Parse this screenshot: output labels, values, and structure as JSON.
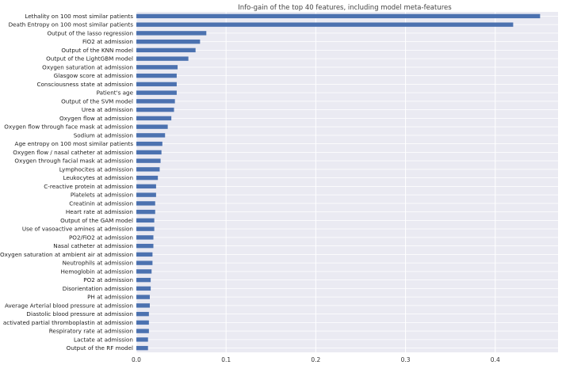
{
  "chart_data": {
    "type": "bar",
    "orientation": "horizontal",
    "title": "Info-gain of the top 40 features, including model meta-features",
    "xlabel": "",
    "ylabel": "",
    "xlim": [
      0,
      0.47
    ],
    "xticks": [
      "0.0",
      "0.1",
      "0.2",
      "0.3",
      "0.4"
    ],
    "grid": true,
    "bar_color": "#4c72b0",
    "background_color": "#eaeaf2",
    "grid_color": "#ffffff",
    "categories": [
      "Lethality on 100 most similar patients",
      "Death Entropy on 100 most similar patients",
      "Output of the lasso regression",
      "FiO2 at admission",
      "Output of the KNN model",
      "Output of the LightGBM model",
      "Oxygen saturation at admission",
      "Glasgow score at admission",
      "Consciousness state at admission",
      "Patient's age",
      "Output of the SVM model",
      "Urea at admission",
      "Oxygen flow at admission",
      "Oxygen flow through face mask at admission",
      "Sodium at admission",
      "Age entropy on 100 most similar patients",
      "Oxygen flow / nasal catheter at admission",
      "Oxygen through facial mask at admission",
      "Lymphocites at admission",
      "Leukocytes at admission",
      "C-reactive protein at admission",
      "Platelets at admission",
      "Creatinin at admission",
      "Heart rate at admission",
      "Output of the GAM model",
      "Use of vasoactive amines at admission",
      "PO2/FiO2 at admission",
      "Nasal catheter at admission",
      "Oxygen saturation at ambient air at admission",
      "Neutrophils at admission",
      "Hemoglobin at admission",
      "PO2 at admission",
      "Disorientation admission",
      "PH at admission",
      "Average Arterial blood pressure at admission",
      "Diastolic blood pressure at admission",
      "activated partial thromboplastin at admission",
      "Respiratory rate at admission",
      "Lactate at admission",
      "Output of the RF model"
    ],
    "values": [
      0.45,
      0.42,
      0.078,
      0.071,
      0.066,
      0.058,
      0.046,
      0.045,
      0.045,
      0.045,
      0.043,
      0.042,
      0.039,
      0.035,
      0.032,
      0.029,
      0.028,
      0.027,
      0.026,
      0.024,
      0.022,
      0.022,
      0.021,
      0.021,
      0.02,
      0.02,
      0.019,
      0.019,
      0.018,
      0.018,
      0.017,
      0.016,
      0.016,
      0.015,
      0.015,
      0.014,
      0.014,
      0.014,
      0.013,
      0.013
    ]
  }
}
